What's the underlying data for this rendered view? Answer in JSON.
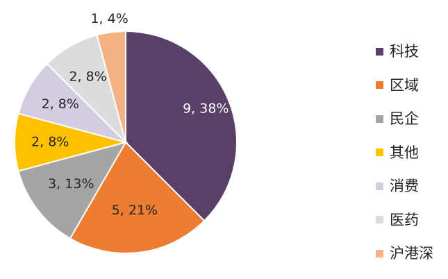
{
  "chart_data": {
    "type": "pie",
    "title": "",
    "start_angle_deg": 0,
    "direction": "clockwise",
    "legend_position": "right",
    "slices": [
      {
        "label": "科技",
        "value": 9,
        "percent": "38%",
        "data_label": "9, 38%",
        "color": "#5A4068",
        "label_color": "#ffffff"
      },
      {
        "label": "区域",
        "value": 5,
        "percent": "21%",
        "data_label": "5, 21%",
        "color": "#ED7D31",
        "label_color": "#262626"
      },
      {
        "label": "民企",
        "value": 3,
        "percent": "13%",
        "data_label": "3, 13%",
        "color": "#A5A5A5",
        "label_color": "#262626"
      },
      {
        "label": "其他",
        "value": 2,
        "percent": "8%",
        "data_label": "2, 8%",
        "color": "#FFC000",
        "label_color": "#262626"
      },
      {
        "label": "消费",
        "value": 2,
        "percent": "8%",
        "data_label": "2, 8%",
        "color": "#D5CCE0",
        "label_color": "#262626"
      },
      {
        "label": "医药",
        "value": 2,
        "percent": "8%",
        "data_label": "2, 8%",
        "color": "#DCDCDC",
        "label_color": "#262626"
      },
      {
        "label": "沪港深",
        "value": 1,
        "percent": "4%",
        "data_label": "1, 4%",
        "color": "#F4B183",
        "label_color": "#262626"
      }
    ]
  }
}
